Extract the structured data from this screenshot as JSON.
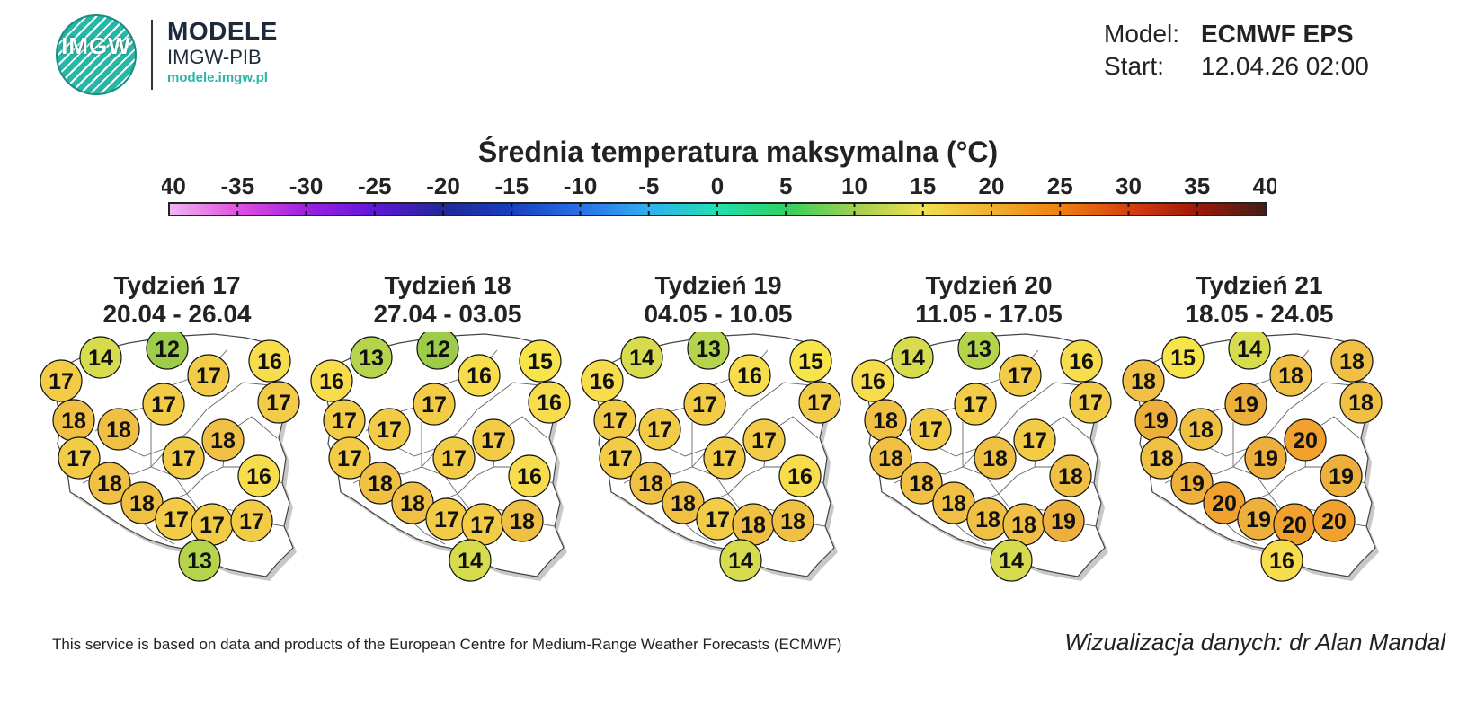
{
  "header": {
    "logo_mark": "IMGW",
    "logo_title": "MODELE",
    "logo_subtitle": "IMGW-PIB",
    "logo_url": "modele.imgw.pl",
    "model_label": "Model:",
    "model_value": "ECMWF EPS",
    "start_label": "Start:",
    "start_value": "12.04.26 02:00"
  },
  "title": "Średnia temperatura maksymalna (°C)",
  "colorbar": {
    "ticks": [
      "-40",
      "-35",
      "-30",
      "-25",
      "-20",
      "-15",
      "-10",
      "-5",
      "0",
      "5",
      "10",
      "15",
      "20",
      "25",
      "30",
      "35",
      "40"
    ],
    "colors": [
      "#f0b8f0",
      "#e050e0",
      "#a020e0",
      "#6018d8",
      "#202898",
      "#1840c0",
      "#2870e8",
      "#30b0f0",
      "#20e0b0",
      "#30d060",
      "#a0d050",
      "#f0e050",
      "#f0b030",
      "#f08010",
      "#d84010",
      "#a01808",
      "#402018"
    ]
  },
  "weeks": [
    {
      "label": "Tydzień 17",
      "dates": "20.04 - 26.04",
      "values": [
        "14",
        "12",
        "16",
        "17",
        "17",
        "17",
        "17",
        "18",
        "18",
        "18",
        "17",
        "17",
        "16",
        "18",
        "18",
        "17",
        "17",
        "17",
        "13"
      ]
    },
    {
      "label": "Tydzień 18",
      "dates": "27.04 - 03.05",
      "values": [
        "13",
        "12",
        "15",
        "16",
        "16",
        "16",
        "17",
        "17",
        "17",
        "17",
        "17",
        "17",
        "16",
        "18",
        "18",
        "17",
        "17",
        "18",
        "14"
      ]
    },
    {
      "label": "Tydzień 19",
      "dates": "04.05 - 10.05",
      "values": [
        "14",
        "13",
        "15",
        "16",
        "16",
        "17",
        "17",
        "17",
        "17",
        "17",
        "17",
        "17",
        "16",
        "18",
        "18",
        "17",
        "18",
        "18",
        "14"
      ]
    },
    {
      "label": "Tydzień 20",
      "dates": "11.05 - 17.05",
      "values": [
        "14",
        "13",
        "16",
        "16",
        "17",
        "17",
        "17",
        "18",
        "17",
        "17",
        "18",
        "18",
        "18",
        "18",
        "18",
        "18",
        "18",
        "19",
        "14"
      ]
    },
    {
      "label": "Tydzień 21",
      "dates": "18.05 - 24.05",
      "values": [
        "15",
        "14",
        "18",
        "18",
        "18",
        "18",
        "19",
        "19",
        "18",
        "20",
        "18",
        "19",
        "19",
        "19",
        "20",
        "19",
        "20",
        "20",
        "16"
      ]
    }
  ],
  "footer": {
    "source": "This service is based on data and products of the European Centre for Medium-Range Weather Forecasts (ECMWF)",
    "credit": "Wizualizacja danych: dr Alan Mandal"
  }
}
